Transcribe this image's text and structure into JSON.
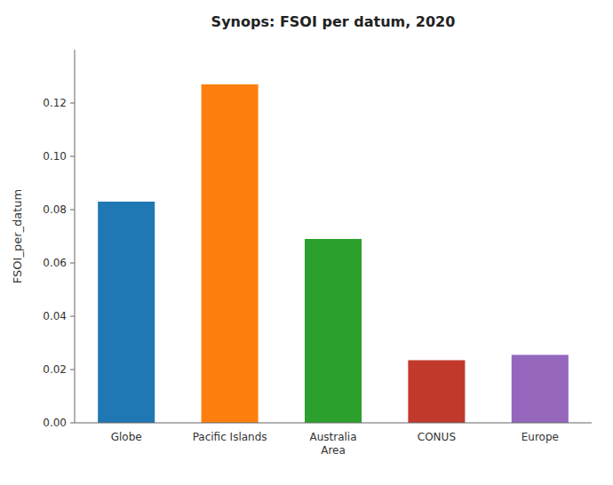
{
  "chart_data": {
    "type": "bar",
    "title": "Synops: FSOI per datum, 2020",
    "categories": [
      "Globe",
      "Pacific Islands",
      "Australia\nArea",
      "CONUS",
      "Europe"
    ],
    "values": [
      0.083,
      0.127,
      0.069,
      0.0235,
      0.0255
    ],
    "colors": [
      "#1f77b4",
      "#ff7f0e",
      "#2ca02c",
      "#c0392b",
      "#9467bd"
    ],
    "ylabel": "FSOI_per_datum",
    "ylim": [
      0,
      0.14
    ],
    "yticks": [
      {
        "value": 0,
        "label": "0.00"
      },
      0.02,
      0.04,
      0.06,
      0.08,
      {
        "value": 0.1,
        "label": "0.10"
      },
      0.12
    ]
  }
}
